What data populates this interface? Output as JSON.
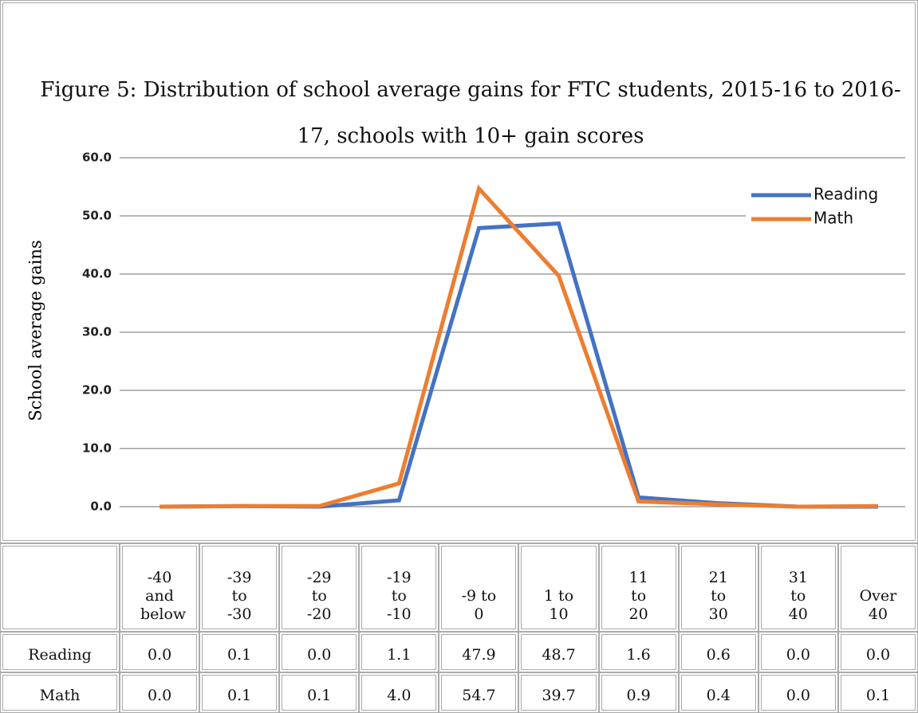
{
  "chart_data": {
    "type": "line",
    "title": "Figure 5:  Distribution of school average gains for FTC students, 2015-16 to 2016-17, schools with 10+ gain scores",
    "ylabel": "School average gains",
    "categories": [
      "-40 and below",
      "-39 to -30",
      "-29 to -20",
      "-19 to -10",
      "-9 to 0",
      "1 to 10",
      "11 to 20",
      "21 to 30",
      "31 to 40",
      "Over 40"
    ],
    "series": [
      {
        "name": "Reading",
        "color": "#4472c4",
        "values": [
          0,
          0.1,
          0,
          1.1,
          47.9,
          48.7,
          1.6,
          0.6,
          0,
          0
        ],
        "value_labels": [
          "0.0",
          "0.1",
          "0.0",
          "1.1",
          "47.9",
          "48.7",
          "1.6",
          "0.6",
          "0.0",
          "0.0"
        ]
      },
      {
        "name": "Math",
        "color": "#ed7d31",
        "values": [
          0,
          0.1,
          0.1,
          4.0,
          54.7,
          39.7,
          0.9,
          0.4,
          0,
          0.1
        ],
        "value_labels": [
          "0.0",
          "0.1",
          "0.1",
          "4.0",
          "54.7",
          "39.7",
          "0.9",
          "0.4",
          "0.0",
          "0.1"
        ]
      }
    ],
    "ylim": [
      0,
      60
    ],
    "yticks": [
      {
        "value": 0,
        "label": "0.0"
      },
      {
        "value": 10,
        "label": "10.0"
      },
      {
        "value": 20,
        "label": "20.0"
      },
      {
        "value": 30,
        "label": "30.0"
      },
      {
        "value": 40,
        "label": "40.0"
      },
      {
        "value": 50,
        "label": "50.0"
      },
      {
        "value": 60,
        "label": "60.0"
      }
    ],
    "grid": true,
    "legend": "top-right"
  }
}
